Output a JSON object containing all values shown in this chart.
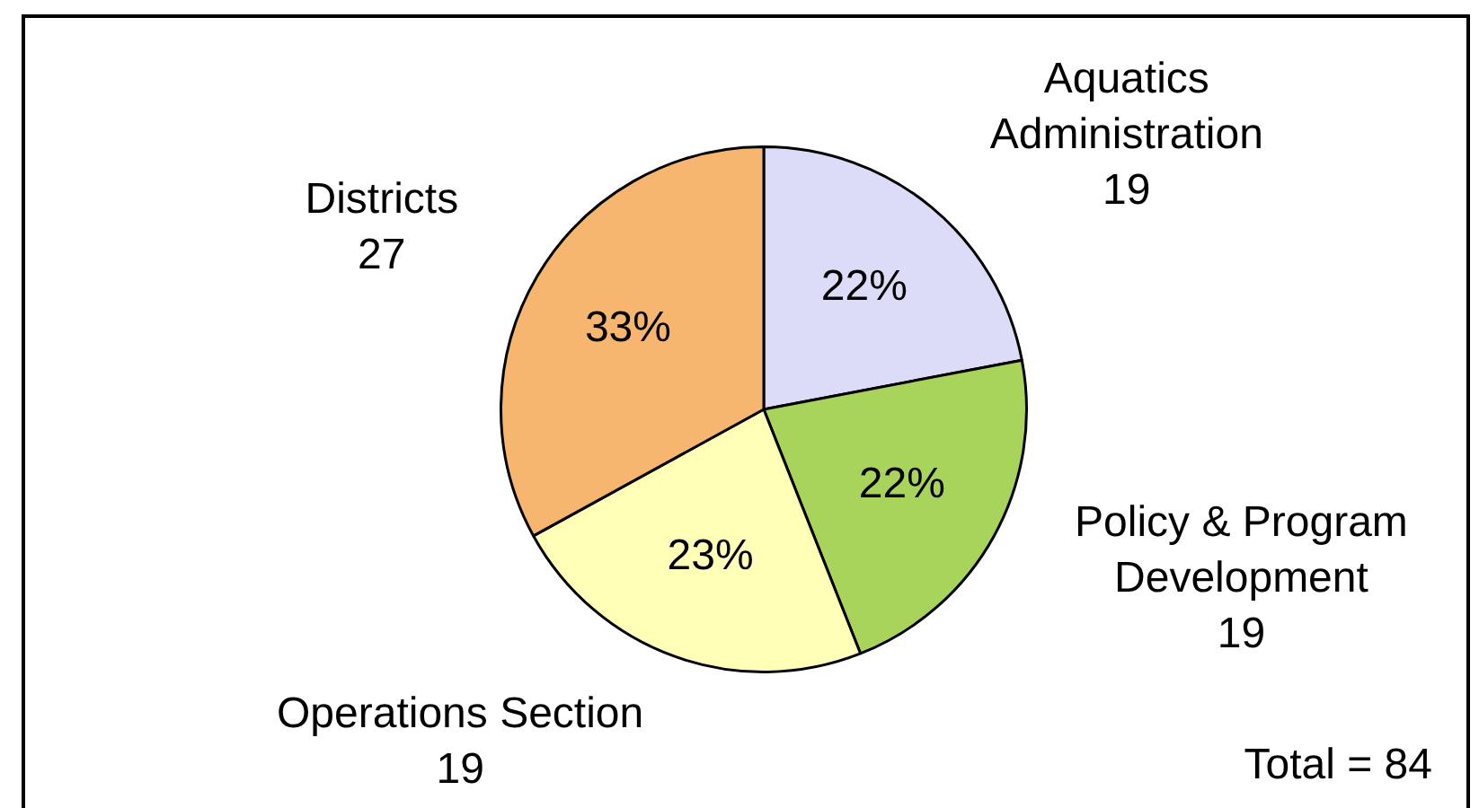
{
  "chart_data": {
    "type": "pie",
    "categories": [
      "Aquatics Administration",
      "Policy & Program Development",
      "Operations Section",
      "Districts"
    ],
    "values": [
      22,
      22,
      23,
      33
    ],
    "colors": [
      "#dcdcf8",
      "#a8d45c",
      "#ffffb8",
      "#f6b670"
    ],
    "value_labels": [
      "22%",
      "22%",
      "23%",
      "33%"
    ],
    "annotations": [
      {
        "text": "19",
        "x": "Aquatics Administration"
      },
      {
        "text": "19",
        "x": "Policy & Program Development"
      },
      {
        "text": "19",
        "x": "Operations Section"
      },
      {
        "text": "27",
        "x": "Districts"
      },
      "Total = 84"
    ]
  }
}
